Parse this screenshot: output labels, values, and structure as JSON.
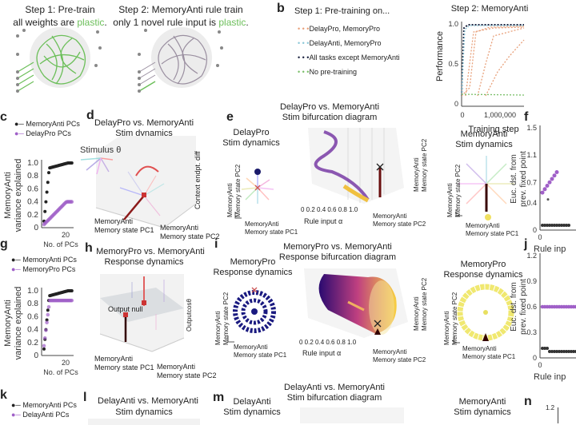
{
  "panel_a": {
    "step1_line1": "Step 1: Pre-train",
    "step1_line2_prefix": "all weights are ",
    "step1_line2_highlight": "plastic",
    "step1_line2_suffix": ".",
    "step2_line1": "Step 2: MemoryAnti rule train",
    "step2_line2_prefix": "only 1 novel rule input is ",
    "step2_line2_highlight": "plastic",
    "step2_line2_suffix": "."
  },
  "panel_b": {
    "label": "b",
    "legend_title": "Step 1: Pre-training on...",
    "legend": [
      {
        "name": "DelayPro, MemoryPro",
        "color": "#e8a07a"
      },
      {
        "name": "DelayAnti, MemoryPro",
        "color": "#8cc8d8"
      },
      {
        "name": "All tasks except MemoryAnti",
        "color": "#1c2340"
      },
      {
        "name": "No pre-training",
        "color": "#7bbf6a"
      }
    ]
  },
  "chart_data": [
    {
      "type": "line",
      "title": "Step 2: MemoryAnti",
      "xlabel": "Training step",
      "ylabel": "Performance",
      "xticks": [
        "0",
        "1,000,000"
      ],
      "yticks": [
        "0",
        "0.5",
        "1.0"
      ],
      "ylim": [
        0,
        1.0
      ]
    },
    {
      "type": "scatter",
      "panel": "c",
      "xlabel": "No. of PCs",
      "ylabel": "MemoryAnti variance explained",
      "xticks": [
        "20"
      ],
      "yticks": [
        "0",
        "0.2",
        "0.4",
        "0.6",
        "0.8",
        "1.0"
      ],
      "legend": [
        "MemoryAnti PCs",
        "DelayPro PCs"
      ]
    },
    {
      "type": "scatter",
      "panel": "f",
      "ylabel": "Euc. dst. from prev. fixed point",
      "xlabel": "Rule inp",
      "xticks": [
        "0"
      ],
      "yticks": [
        "0",
        "0.4",
        "0.7",
        "1.1",
        "1.5"
      ]
    },
    {
      "type": "scatter",
      "panel": "g",
      "xlabel": "No. of PCs",
      "ylabel": "MemoryAnti variance explained",
      "xticks": [
        "20"
      ],
      "yticks": [
        "0",
        "0.2",
        "0.4",
        "0.6",
        "0.8",
        "1.0"
      ],
      "legend": [
        "MemoryAnti PCs",
        "MemoryPro PCs"
      ]
    },
    {
      "type": "scatter",
      "panel": "j",
      "ylabel": "Euc. dst. from prev. fixed point",
      "xlabel": "Rule inp",
      "xticks": [
        "0"
      ],
      "yticks": [
        "0",
        "0.3",
        "0.6",
        "0.9",
        "1.2"
      ]
    }
  ],
  "panel_c": {
    "label": "c",
    "legend": [
      "MemoryAnti PCs",
      "DelayPro PCs"
    ]
  },
  "panel_d": {
    "label": "d",
    "title1": "DelayPro vs. MemoryAnti",
    "title2": "Stim dynamics",
    "stimulus": "Stimulus θ",
    "z_axis": "Context endpt. diff",
    "x_axis1": "MemoryAnti",
    "x_axis2": "Memory state PC1",
    "y_axis1": "MemoryAnti",
    "y_axis2": "Memory state PC2"
  },
  "panel_e": {
    "label": "e",
    "left_title1": "DelayPro",
    "left_title2": "Stim dynamics",
    "mid_title1": "DelayPro vs. MemoryAnti",
    "mid_title2": "Stim bifurcation diagram",
    "right_title1": "MemoryAnti",
    "right_title2": "Stim dynamics",
    "axis_pc1_a": "MemoryAnti",
    "axis_pc1_b": "Memory state PC1",
    "axis_pc2_a": "MemoryAnti",
    "axis_pc2_b": "Memory state PC2",
    "rule_axis": "Rule input α",
    "rule_ticks": "0  0.2  0.4  0.6  0.8  1.0"
  },
  "panel_f": {
    "label": "f"
  },
  "panel_g": {
    "label": "g",
    "legend": [
      "MemoryAnti PCs",
      "MemoryPro PCs"
    ]
  },
  "panel_h": {
    "label": "h",
    "title1": "MemoryPro vs. MemoryAnti",
    "title2": "Response dynamics",
    "output_null": "Output null",
    "z_axis": "Outputcosθ"
  },
  "panel_i": {
    "label": "i",
    "left_title1": "MemoryPro",
    "left_title2": "Response dynamics",
    "mid_title1": "MemoryPro vs. MemoryAnti",
    "mid_title2": "Response bifurcation diagram",
    "right_title1": "MemoryPro",
    "right_title2": "Response dynamics"
  },
  "panel_j": {
    "label": "j"
  },
  "panel_k": {
    "label": "k",
    "legend": [
      "MemoryAnti PCs",
      "DelayAnti PCs"
    ]
  },
  "panel_l": {
    "label": "l",
    "title1": "DelayAnti vs. MemoryAnti",
    "title2": "Stim dynamics"
  },
  "panel_m": {
    "label": "m",
    "left_title1": "DelayAnti",
    "left_title2": "Stim dynamics",
    "mid_title1": "DelayAnti vs. MemoryAnti",
    "mid_title2": "Stim bifurcation diagram",
    "right_title1": "MemoryAnti",
    "right_title2": "Stim dynamics"
  },
  "panel_n": {
    "label": "n",
    "ytick_top": "1.2"
  },
  "colors": {
    "plastic": "#6cbf5a",
    "network_green": "#6cbf5a",
    "network_gray": "#9a8fa0",
    "purple": "#a060c8",
    "black": "#222222"
  }
}
